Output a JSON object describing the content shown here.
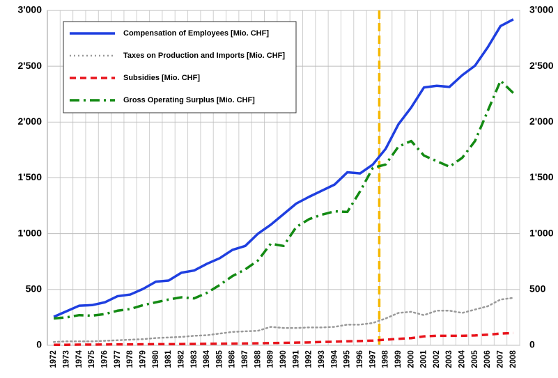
{
  "chart_data": {
    "type": "line",
    "categories": [
      "1972",
      "1973",
      "1974",
      "1975",
      "1976",
      "1977",
      "1978",
      "1979",
      "1980",
      "1981",
      "1982",
      "1983",
      "1984",
      "1985",
      "1986",
      "1987",
      "1988",
      "1989",
      "1990",
      "1991",
      "1992",
      "1993",
      "1994",
      "1995",
      "1996",
      "1997",
      "1998",
      "1999",
      "2000",
      "2001",
      "2002",
      "2003",
      "2004",
      "2005",
      "2006",
      "2007",
      "2008"
    ],
    "series": [
      {
        "name": "Compensation of Employees [Mio. CHF]",
        "color": "#1f3fe0",
        "style": "solid",
        "values": [
          255,
          305,
          355,
          360,
          385,
          440,
          455,
          505,
          570,
          580,
          650,
          670,
          730,
          780,
          855,
          890,
          1000,
          1080,
          1175,
          1270,
          1330,
          1385,
          1440,
          1550,
          1540,
          1620,
          1760,
          1980,
          2130,
          2310,
          2325,
          2315,
          2420,
          2505,
          2670,
          2860,
          2920
        ]
      },
      {
        "name": "Taxes on Production and Imports [Mio. CHF]",
        "color": "#999999",
        "style": "dotted",
        "values": [
          30,
          35,
          35,
          35,
          40,
          45,
          50,
          55,
          65,
          70,
          75,
          85,
          90,
          105,
          120,
          125,
          130,
          165,
          155,
          155,
          160,
          160,
          165,
          185,
          185,
          200,
          240,
          290,
          300,
          270,
          310,
          310,
          290,
          320,
          350,
          410,
          425
        ]
      },
      {
        "name": "Subsidies [Mio. CHF]",
        "color": "#e8141c",
        "style": "dashed",
        "values": [
          5,
          5,
          6,
          6,
          7,
          8,
          8,
          9,
          10,
          10,
          11,
          12,
          13,
          14,
          15,
          16,
          18,
          20,
          22,
          24,
          26,
          30,
          32,
          36,
          38,
          42,
          50,
          58,
          64,
          80,
          85,
          85,
          85,
          88,
          95,
          105,
          110
        ]
      },
      {
        "name": "Gross Operating Surplus [Mio. CHF]",
        "color": "#138a13",
        "style": "dashdot",
        "values": [
          240,
          250,
          270,
          265,
          280,
          310,
          325,
          360,
          385,
          410,
          430,
          420,
          470,
          540,
          620,
          680,
          760,
          910,
          890,
          1060,
          1130,
          1170,
          1200,
          1195,
          1380,
          1590,
          1620,
          1780,
          1830,
          1700,
          1650,
          1600,
          1680,
          1830,
          2100,
          2370,
          2260
        ]
      }
    ],
    "ylim": [
      0,
      3000
    ],
    "yticks": [
      0,
      500,
      {
        "value": 1000,
        "label": "1'000"
      },
      {
        "value": 1500,
        "label": "1'500"
      },
      {
        "value": 2000,
        "label": "2'000"
      },
      {
        "value": 2500,
        "label": "2'500"
      },
      {
        "value": 3000,
        "label": "3'000"
      }
    ],
    "grid": true,
    "legend": "top-left"
  }
}
